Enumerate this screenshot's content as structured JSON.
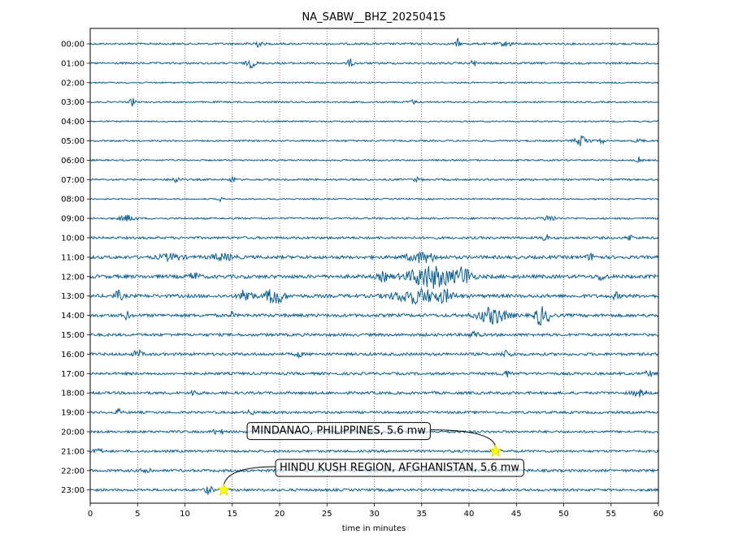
{
  "chart_data": {
    "type": "line",
    "title": "NA_SABW__BHZ_20250415",
    "xlabel": "time in minutes",
    "ylabel": "",
    "xlim": [
      0,
      60
    ],
    "x_ticks": [
      0,
      5,
      10,
      15,
      20,
      25,
      30,
      35,
      40,
      45,
      50,
      55,
      60
    ],
    "grid": "vertical dotted lines every 5 minutes",
    "trace_color": "#0b5f8f",
    "rows": [
      {
        "label": "00:00",
        "noise": 1.0,
        "bursts": [
          {
            "t": 17.5,
            "w": 0.6,
            "a": 3
          },
          {
            "t": 38.8,
            "w": 0.2,
            "a": 5
          },
          {
            "t": 44,
            "w": 0.8,
            "a": 2
          }
        ]
      },
      {
        "label": "01:00",
        "noise": 1.0,
        "bursts": [
          {
            "t": 17,
            "w": 0.5,
            "a": 4
          },
          {
            "t": 27.5,
            "w": 0.3,
            "a": 4
          },
          {
            "t": 40.5,
            "w": 0.3,
            "a": 3
          }
        ]
      },
      {
        "label": "02:00",
        "noise": 0.7,
        "bursts": []
      },
      {
        "label": "03:00",
        "noise": 0.8,
        "bursts": [
          {
            "t": 4.5,
            "w": 0.3,
            "a": 4
          },
          {
            "t": 34,
            "w": 0.4,
            "a": 2
          }
        ]
      },
      {
        "label": "04:00",
        "noise": 0.7,
        "bursts": []
      },
      {
        "label": "05:00",
        "noise": 0.8,
        "bursts": [
          {
            "t": 52,
            "w": 0.8,
            "a": 5
          },
          {
            "t": 54,
            "w": 0.2,
            "a": 4
          },
          {
            "t": 58,
            "w": 0.4,
            "a": 2
          }
        ]
      },
      {
        "label": "06:00",
        "noise": 0.8,
        "bursts": [
          {
            "t": 58,
            "w": 0.3,
            "a": 3
          }
        ]
      },
      {
        "label": "07:00",
        "noise": 0.9,
        "bursts": [
          {
            "t": 9,
            "w": 0.5,
            "a": 3
          },
          {
            "t": 15,
            "w": 0.2,
            "a": 7
          },
          {
            "t": 34.5,
            "w": 0.4,
            "a": 2
          }
        ]
      },
      {
        "label": "08:00",
        "noise": 0.7,
        "bursts": [
          {
            "t": 13.8,
            "w": 0.2,
            "a": 3
          }
        ]
      },
      {
        "label": "09:00",
        "noise": 0.9,
        "bursts": [
          {
            "t": 4,
            "w": 0.8,
            "a": 3
          },
          {
            "t": 48.5,
            "w": 0.7,
            "a": 3
          }
        ]
      },
      {
        "label": "10:00",
        "noise": 1.2,
        "bursts": [
          {
            "t": 48,
            "w": 0.3,
            "a": 4
          },
          {
            "t": 57,
            "w": 0.3,
            "a": 3
          }
        ]
      },
      {
        "label": "11:00",
        "noise": 1.6,
        "bursts": [
          {
            "t": 8.5,
            "w": 1.2,
            "a": 3
          },
          {
            "t": 14,
            "w": 1.2,
            "a": 3
          },
          {
            "t": 35,
            "w": 1.5,
            "a": 5
          },
          {
            "t": 53,
            "w": 0.6,
            "a": 3
          }
        ]
      },
      {
        "label": "12:00",
        "noise": 1.8,
        "bursts": [
          {
            "t": 11,
            "w": 0.5,
            "a": 4
          },
          {
            "t": 31,
            "w": 0.6,
            "a": 4
          },
          {
            "t": 36,
            "w": 2.4,
            "a": 11
          },
          {
            "t": 39.5,
            "w": 0.8,
            "a": 9
          },
          {
            "t": 54,
            "w": 0.4,
            "a": 4
          }
        ]
      },
      {
        "label": "13:00",
        "noise": 1.7,
        "bursts": [
          {
            "t": 3,
            "w": 0.4,
            "a": 5
          },
          {
            "t": 16.5,
            "w": 0.6,
            "a": 8
          },
          {
            "t": 19.5,
            "w": 0.9,
            "a": 9
          },
          {
            "t": 34.5,
            "w": 2.4,
            "a": 7
          },
          {
            "t": 37.5,
            "w": 0.8,
            "a": 5
          },
          {
            "t": 55.5,
            "w": 0.4,
            "a": 3
          }
        ]
      },
      {
        "label": "14:00",
        "noise": 1.6,
        "bursts": [
          {
            "t": 3.8,
            "w": 0.3,
            "a": 4
          },
          {
            "t": 15,
            "w": 0.2,
            "a": 3
          },
          {
            "t": 42.5,
            "w": 1.5,
            "a": 8
          },
          {
            "t": 47.5,
            "w": 0.5,
            "a": 10
          },
          {
            "t": 48.5,
            "w": 0.4,
            "a": 5
          }
        ]
      },
      {
        "label": "15:00",
        "noise": 1.4,
        "bursts": [
          {
            "t": 40.5,
            "w": 0.6,
            "a": 3
          }
        ]
      },
      {
        "label": "16:00",
        "noise": 1.4,
        "bursts": [
          {
            "t": 5,
            "w": 0.4,
            "a": 4
          },
          {
            "t": 22,
            "w": 0.3,
            "a": 3
          },
          {
            "t": 44,
            "w": 0.6,
            "a": 3
          }
        ]
      },
      {
        "label": "17:00",
        "noise": 1.3,
        "bursts": [
          {
            "t": 44,
            "w": 0.5,
            "a": 3
          },
          {
            "t": 59,
            "w": 0.3,
            "a": 4
          }
        ]
      },
      {
        "label": "18:00",
        "noise": 1.3,
        "bursts": [
          {
            "t": 11,
            "w": 0.4,
            "a": 3
          },
          {
            "t": 58,
            "w": 0.8,
            "a": 3
          }
        ]
      },
      {
        "label": "19:00",
        "noise": 1.2,
        "bursts": [
          {
            "t": 3,
            "w": 0.3,
            "a": 3
          },
          {
            "t": 17,
            "w": 0.3,
            "a": 3
          }
        ]
      },
      {
        "label": "20:00",
        "noise": 1.2,
        "bursts": [
          {
            "t": 13.5,
            "w": 0.5,
            "a": 3
          }
        ]
      },
      {
        "label": "21:00",
        "noise": 1.2,
        "bursts": [
          {
            "t": 0.8,
            "w": 0.4,
            "a": 3
          }
        ]
      },
      {
        "label": "22:00",
        "noise": 1.3,
        "bursts": [
          {
            "t": 6,
            "w": 0.5,
            "a": 3
          }
        ]
      },
      {
        "label": "23:00",
        "noise": 1.2,
        "bursts": [
          {
            "t": 12.5,
            "w": 0.4,
            "a": 4
          }
        ]
      }
    ],
    "annotations": [
      {
        "text": "MINDANAO, PHILIPPINES, 5.6 mw",
        "row_index": 21,
        "t": 42.8,
        "text_t": 17,
        "text_row": 19.9,
        "marker": "yellow-star"
      },
      {
        "text": "HINDU KUSH REGION, AFGHANISTAN, 5.6 mw",
        "row_index": 23,
        "t": 14.1,
        "text_t": 20,
        "text_row": 21.8,
        "marker": "yellow-star"
      }
    ]
  }
}
